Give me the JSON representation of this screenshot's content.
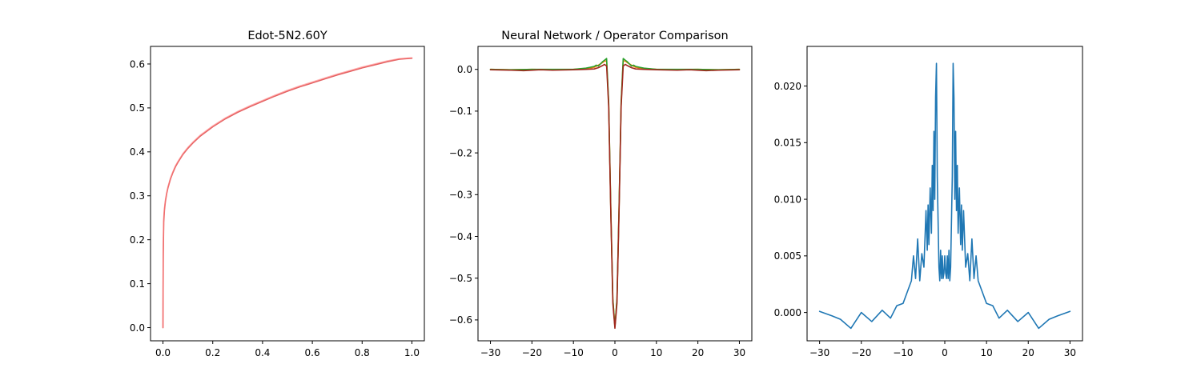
{
  "chart_data": [
    {
      "type": "line",
      "title": "Edot-5N2.60Y",
      "xlabel": "",
      "ylabel": "",
      "xlim": [
        -0.05,
        1.05
      ],
      "ylim": [
        -0.03,
        0.64
      ],
      "xticks": [
        0.0,
        0.2,
        0.4,
        0.6,
        0.8,
        1.0
      ],
      "xtick_labels": [
        "0.0",
        "0.2",
        "0.4",
        "0.6",
        "0.8",
        "1.0"
      ],
      "yticks": [
        0.0,
        0.1,
        0.2,
        0.3,
        0.4,
        0.5,
        0.6
      ],
      "ytick_labels": [
        "0.0",
        "0.1",
        "0.2",
        "0.3",
        "0.4",
        "0.5",
        "0.6"
      ],
      "grid": false,
      "series": [
        {
          "color": "#d62728",
          "opacity": 0.75,
          "x": [
            0.0,
            0.001,
            0.003,
            0.006,
            0.01,
            0.015,
            0.02,
            0.03,
            0.04,
            0.05,
            0.06,
            0.08,
            0.1,
            0.12,
            0.15,
            0.2,
            0.25,
            0.3,
            0.35,
            0.4,
            0.45,
            0.5,
            0.55,
            0.6,
            0.65,
            0.7,
            0.75,
            0.8,
            0.85,
            0.9,
            0.95,
            1.0
          ],
          "y": [
            0.0,
            0.16,
            0.24,
            0.268,
            0.288,
            0.305,
            0.318,
            0.338,
            0.353,
            0.366,
            0.376,
            0.394,
            0.408,
            0.42,
            0.436,
            0.457,
            0.475,
            0.49,
            0.503,
            0.515,
            0.527,
            0.538,
            0.548,
            0.557,
            0.566,
            0.575,
            0.583,
            0.591,
            0.598,
            0.605,
            0.611,
            0.613
          ]
        },
        {
          "color": "#ff7f7f",
          "opacity": 0.6,
          "x": [
            0.0,
            0.001,
            0.003,
            0.006,
            0.01,
            0.015,
            0.02,
            0.03,
            0.04,
            0.05,
            0.06,
            0.08,
            0.1,
            0.12,
            0.15,
            0.2,
            0.25,
            0.3,
            0.35,
            0.4,
            0.45,
            0.5,
            0.55,
            0.6,
            0.65,
            0.7,
            0.75,
            0.8,
            0.85,
            0.9,
            0.95,
            1.0
          ],
          "y": [
            0.0,
            0.18,
            0.25,
            0.272,
            0.291,
            0.307,
            0.32,
            0.34,
            0.355,
            0.368,
            0.378,
            0.396,
            0.41,
            0.422,
            0.438,
            0.459,
            0.477,
            0.492,
            0.505,
            0.517,
            0.529,
            0.54,
            0.55,
            0.559,
            0.568,
            0.577,
            0.585,
            0.593,
            0.6,
            0.607,
            0.612,
            0.614
          ]
        }
      ]
    },
    {
      "type": "line",
      "title": "Neural Network / Operator Comparison",
      "xlabel": "",
      "ylabel": "",
      "xlim": [
        -33,
        33
      ],
      "ylim": [
        -0.65,
        0.055
      ],
      "xticks": [
        -30,
        -20,
        -10,
        0,
        10,
        20,
        30
      ],
      "xtick_labels": [
        "−30",
        "−20",
        "−10",
        "0",
        "10",
        "20",
        "30"
      ],
      "yticks": [
        0.0,
        -0.1,
        -0.2,
        -0.3,
        -0.4,
        -0.5,
        -0.6
      ],
      "ytick_labels": [
        "0.0",
        "−0.1",
        "−0.2",
        "−0.3",
        "−0.4",
        "−0.5",
        "−0.6"
      ],
      "grid": false,
      "series": [
        {
          "color": "#ff7f0e",
          "x": [
            -30,
            -25,
            -20,
            -15,
            -10,
            -7,
            -5,
            -4,
            -3,
            -2.5,
            -2,
            -1.5,
            -1,
            -0.5,
            0,
            0.5,
            1,
            1.5,
            2,
            2.5,
            3,
            4,
            5,
            7,
            10,
            15,
            20,
            25,
            30
          ],
          "y": [
            0.0,
            -0.001,
            0.0,
            -0.001,
            0.0,
            0.002,
            0.005,
            0.01,
            0.016,
            0.02,
            0.02,
            -0.08,
            -0.33,
            -0.55,
            -0.615,
            -0.55,
            -0.33,
            -0.08,
            0.02,
            0.02,
            0.016,
            0.01,
            0.005,
            0.002,
            0.0,
            -0.001,
            0.0,
            -0.001,
            0.0
          ]
        },
        {
          "color": "#2ca02c",
          "x": [
            -30,
            -25,
            -20,
            -15,
            -10,
            -7,
            -6,
            -5,
            -4.5,
            -4,
            -3.5,
            -3,
            -2.5,
            -2,
            -1.5,
            -1,
            -0.5,
            0,
            0.5,
            1,
            1.5,
            2,
            2.5,
            3,
            3.5,
            4,
            4.5,
            5,
            6,
            7,
            10,
            15,
            20,
            25,
            30
          ],
          "y": [
            0.0,
            -0.001,
            0.0,
            0.0,
            0.0,
            0.003,
            0.005,
            0.007,
            0.01,
            0.008,
            0.013,
            0.018,
            0.022,
            0.026,
            -0.08,
            -0.33,
            -0.55,
            -0.617,
            -0.55,
            -0.33,
            -0.08,
            0.026,
            0.022,
            0.018,
            0.013,
            0.008,
            0.01,
            0.007,
            0.005,
            0.003,
            0.0,
            0.0,
            0.0,
            -0.001,
            0.0
          ]
        },
        {
          "color": "#a0281e",
          "x": [
            -30,
            -25,
            -22,
            -18,
            -15,
            -10,
            -7,
            -5,
            -4,
            -3,
            -2.5,
            -2,
            -1.5,
            -1,
            -0.5,
            0,
            0.5,
            1,
            1.5,
            2,
            2.5,
            3,
            4,
            5,
            7,
            10,
            15,
            18,
            22,
            25,
            30
          ],
          "y": [
            -0.001,
            -0.002,
            -0.003,
            -0.001,
            -0.002,
            -0.001,
            0.0,
            0.001,
            0.004,
            0.009,
            0.012,
            0.008,
            -0.09,
            -0.34,
            -0.56,
            -0.62,
            -0.56,
            -0.34,
            -0.09,
            0.008,
            0.012,
            0.009,
            0.004,
            0.001,
            0.0,
            -0.001,
            -0.002,
            -0.001,
            -0.003,
            -0.002,
            -0.001
          ]
        }
      ]
    },
    {
      "type": "line",
      "title": "",
      "xlabel": "",
      "ylabel": "",
      "xlim": [
        -33,
        33
      ],
      "ylim": [
        -0.0025,
        0.0235
      ],
      "xticks": [
        -30,
        -20,
        -10,
        0,
        10,
        20,
        30
      ],
      "xtick_labels": [
        "−30",
        "−20",
        "−10",
        "0",
        "10",
        "20",
        "30"
      ],
      "yticks": [
        0.0,
        0.005,
        0.01,
        0.015,
        0.02
      ],
      "ytick_labels": [
        "0.000",
        "0.005",
        "0.010",
        "0.015",
        "0.020"
      ],
      "grid": false,
      "series": [
        {
          "color": "#1f77b4",
          "x": [
            -30,
            -27,
            -25,
            -22.5,
            -20,
            -17.5,
            -15,
            -13,
            -11.5,
            -10,
            -9,
            -8,
            -7.5,
            -7,
            -6.5,
            -6,
            -5.5,
            -5,
            -4.5,
            -4.2,
            -4,
            -3.8,
            -3.5,
            -3.2,
            -3,
            -2.8,
            -2.6,
            -2.4,
            -2.2,
            -2,
            -1.8,
            -1.6,
            -1.4,
            -1.2,
            -1,
            -0.8,
            -0.6,
            -0.4,
            -0.2,
            0,
            0.2,
            0.4,
            0.6,
            0.8,
            1,
            1.2,
            1.4,
            1.6,
            1.8,
            2,
            2.2,
            2.4,
            2.6,
            2.8,
            3,
            3.2,
            3.5,
            3.8,
            4,
            4.2,
            4.5,
            5,
            5.5,
            6,
            6.5,
            7,
            7.5,
            8,
            9,
            10,
            11.5,
            13,
            15,
            17.5,
            20,
            22.5,
            25,
            27,
            30
          ],
          "y": [
            0.0001,
            -0.0003,
            -0.0006,
            -0.0014,
            0.0,
            -0.0008,
            0.0002,
            -0.0005,
            0.0006,
            0.0008,
            0.0018,
            0.0028,
            0.005,
            0.003,
            0.0065,
            0.0028,
            0.0052,
            0.004,
            0.009,
            0.0055,
            0.0095,
            0.006,
            0.011,
            0.007,
            0.013,
            0.009,
            0.016,
            0.01,
            0.019,
            0.022,
            0.012,
            0.008,
            0.004,
            0.0028,
            0.0055,
            0.003,
            0.005,
            0.003,
            0.0035,
            0.005,
            0.0035,
            0.003,
            0.005,
            0.003,
            0.0055,
            0.0028,
            0.004,
            0.008,
            0.012,
            0.022,
            0.019,
            0.01,
            0.016,
            0.009,
            0.013,
            0.007,
            0.011,
            0.006,
            0.0095,
            0.0055,
            0.009,
            0.004,
            0.0052,
            0.0028,
            0.0065,
            0.003,
            0.005,
            0.0028,
            0.0018,
            0.0008,
            0.0006,
            -0.0005,
            0.0002,
            -0.0008,
            0.0,
            -0.0014,
            -0.0006,
            -0.0003,
            0.0001
          ]
        }
      ]
    }
  ]
}
